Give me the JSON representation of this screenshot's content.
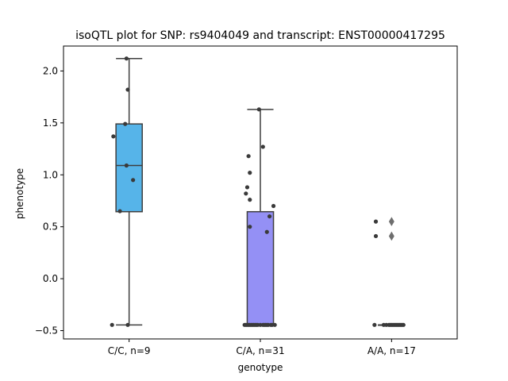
{
  "chart_data": {
    "type": "box",
    "title": "isoQTL plot for SNP: rs9404049 and transcript: ENST00000417295",
    "xlabel": "genotype",
    "ylabel": "phenotype",
    "ylim": [
      -0.58,
      2.24
    ],
    "yticks": [
      -0.5,
      0.0,
      0.5,
      1.0,
      1.5,
      2.0
    ],
    "ytick_labels": [
      "−0.5",
      "0.0",
      "0.5",
      "1.0",
      "1.5",
      "2.0"
    ],
    "categories": [
      "C/C, n=9",
      "C/A, n=31",
      "A/A, n=17"
    ],
    "boxes": [
      {
        "category": "C/C, n=9",
        "color": "#56b4e9",
        "q1": 0.645,
        "median": 1.09,
        "q3": 1.49,
        "whisker_low": -0.445,
        "whisker_high": 2.12,
        "outliers": []
      },
      {
        "category": "C/A, n=31",
        "color": "#9490f5",
        "q1": -0.445,
        "median": -0.445,
        "q3": 0.645,
        "whisker_low": -0.445,
        "whisker_high": 1.63,
        "outliers": []
      },
      {
        "category": "A/A, n=17",
        "color": "#5e9ad8",
        "q1": -0.445,
        "median": -0.445,
        "q3": -0.445,
        "whisker_low": -0.445,
        "whisker_high": -0.445,
        "outliers": [
          0.55,
          0.41
        ]
      }
    ],
    "points": [
      {
        "category": 0,
        "jitter": -0.02,
        "y": 2.12
      },
      {
        "category": 0,
        "jitter": -0.01,
        "y": 1.82
      },
      {
        "category": 0,
        "jitter": -0.03,
        "y": 1.49
      },
      {
        "category": 0,
        "jitter": -0.12,
        "y": 1.37
      },
      {
        "category": 0,
        "jitter": -0.02,
        "y": 1.09
      },
      {
        "category": 0,
        "jitter": 0.03,
        "y": 0.95
      },
      {
        "category": 0,
        "jitter": -0.07,
        "y": 0.65
      },
      {
        "category": 0,
        "jitter": -0.13,
        "y": -0.445
      },
      {
        "category": 0,
        "jitter": -0.01,
        "y": -0.445
      },
      {
        "category": 1,
        "jitter": -0.01,
        "y": 1.63
      },
      {
        "category": 1,
        "jitter": 0.02,
        "y": 1.27
      },
      {
        "category": 1,
        "jitter": -0.09,
        "y": 1.18
      },
      {
        "category": 1,
        "jitter": -0.08,
        "y": 1.02
      },
      {
        "category": 1,
        "jitter": -0.1,
        "y": 0.88
      },
      {
        "category": 1,
        "jitter": -0.11,
        "y": 0.82
      },
      {
        "category": 1,
        "jitter": -0.08,
        "y": 0.76
      },
      {
        "category": 1,
        "jitter": 0.1,
        "y": 0.7
      },
      {
        "category": 1,
        "jitter": 0.07,
        "y": 0.6
      },
      {
        "category": 1,
        "jitter": -0.08,
        "y": 0.5
      },
      {
        "category": 1,
        "jitter": 0.05,
        "y": 0.45
      },
      {
        "category": 1,
        "jitter": -0.12,
        "y": -0.445
      },
      {
        "category": 1,
        "jitter": -0.11,
        "y": -0.445
      },
      {
        "category": 1,
        "jitter": -0.1,
        "y": -0.445
      },
      {
        "category": 1,
        "jitter": -0.09,
        "y": -0.445
      },
      {
        "category": 1,
        "jitter": -0.08,
        "y": -0.445
      },
      {
        "category": 1,
        "jitter": -0.06,
        "y": -0.445
      },
      {
        "category": 1,
        "jitter": -0.05,
        "y": -0.445
      },
      {
        "category": 1,
        "jitter": -0.04,
        "y": -0.445
      },
      {
        "category": 1,
        "jitter": -0.03,
        "y": -0.445
      },
      {
        "category": 1,
        "jitter": -0.02,
        "y": -0.445
      },
      {
        "category": 1,
        "jitter": 0.0,
        "y": -0.445
      },
      {
        "category": 1,
        "jitter": 0.02,
        "y": -0.445
      },
      {
        "category": 1,
        "jitter": 0.04,
        "y": -0.445
      },
      {
        "category": 1,
        "jitter": 0.05,
        "y": -0.445
      },
      {
        "category": 1,
        "jitter": 0.06,
        "y": -0.445
      },
      {
        "category": 1,
        "jitter": 0.08,
        "y": -0.445
      },
      {
        "category": 1,
        "jitter": 0.09,
        "y": -0.445
      },
      {
        "category": 1,
        "jitter": 0.11,
        "y": -0.445
      },
      {
        "category": 1,
        "jitter": -0.07,
        "y": -0.445
      },
      {
        "category": 1,
        "jitter": 0.03,
        "y": -0.445
      },
      {
        "category": 2,
        "jitter": -0.12,
        "y": 0.55
      },
      {
        "category": 2,
        "jitter": -0.12,
        "y": 0.41
      },
      {
        "category": 2,
        "jitter": -0.13,
        "y": -0.445
      },
      {
        "category": 2,
        "jitter": -0.06,
        "y": -0.445
      },
      {
        "category": 2,
        "jitter": -0.04,
        "y": -0.445
      },
      {
        "category": 2,
        "jitter": -0.02,
        "y": -0.445
      },
      {
        "category": 2,
        "jitter": -0.01,
        "y": -0.445
      },
      {
        "category": 2,
        "jitter": 0.0,
        "y": -0.445
      },
      {
        "category": 2,
        "jitter": 0.01,
        "y": -0.445
      },
      {
        "category": 2,
        "jitter": 0.02,
        "y": -0.445
      },
      {
        "category": 2,
        "jitter": 0.03,
        "y": -0.445
      },
      {
        "category": 2,
        "jitter": 0.04,
        "y": -0.445
      },
      {
        "category": 2,
        "jitter": 0.05,
        "y": -0.445
      },
      {
        "category": 2,
        "jitter": 0.06,
        "y": -0.445
      },
      {
        "category": 2,
        "jitter": 0.07,
        "y": -0.445
      },
      {
        "category": 2,
        "jitter": 0.08,
        "y": -0.445
      },
      {
        "category": 2,
        "jitter": 0.09,
        "y": -0.445
      }
    ],
    "grid": false,
    "legend": "none"
  }
}
